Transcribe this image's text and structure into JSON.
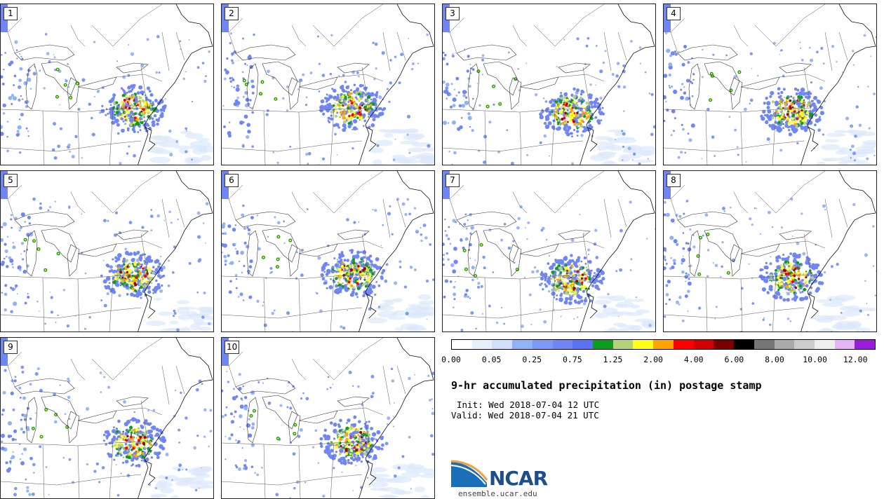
{
  "panels": [
    "1",
    "2",
    "3",
    "4",
    "5",
    "6",
    "7",
    "8",
    "9",
    "10"
  ],
  "colorbar": {
    "colors": [
      "#ffffff",
      "#e8f1fb",
      "#cfe0fb",
      "#8fb3f7",
      "#7a9af5",
      "#6f86f4",
      "#5b73f2",
      "#0e9b1c",
      "#b5d27a",
      "#ffff1a",
      "#ffa400",
      "#ff0000",
      "#d10000",
      "#7a0000",
      "#000000",
      "#777777",
      "#aaaaaa",
      "#cccccc",
      "#eeeeee",
      "#e4b4f5",
      "#9a1cd9"
    ],
    "tick_labels": [
      "0.00",
      "0.05",
      "0.25",
      "0.75",
      "1.25",
      "2.00",
      "4.00",
      "6.00",
      "8.00",
      "10.00",
      "12.00"
    ]
  },
  "title": "9-hr accumulated precipitation (in) postage stamp",
  "init_line": "Init: Wed 2018-07-04 12 UTC",
  "valid_line": "Valid: Wed 2018-07-04 21 UTC",
  "logo_text": "NCAR",
  "url": "ensemble.ucar.edu"
}
